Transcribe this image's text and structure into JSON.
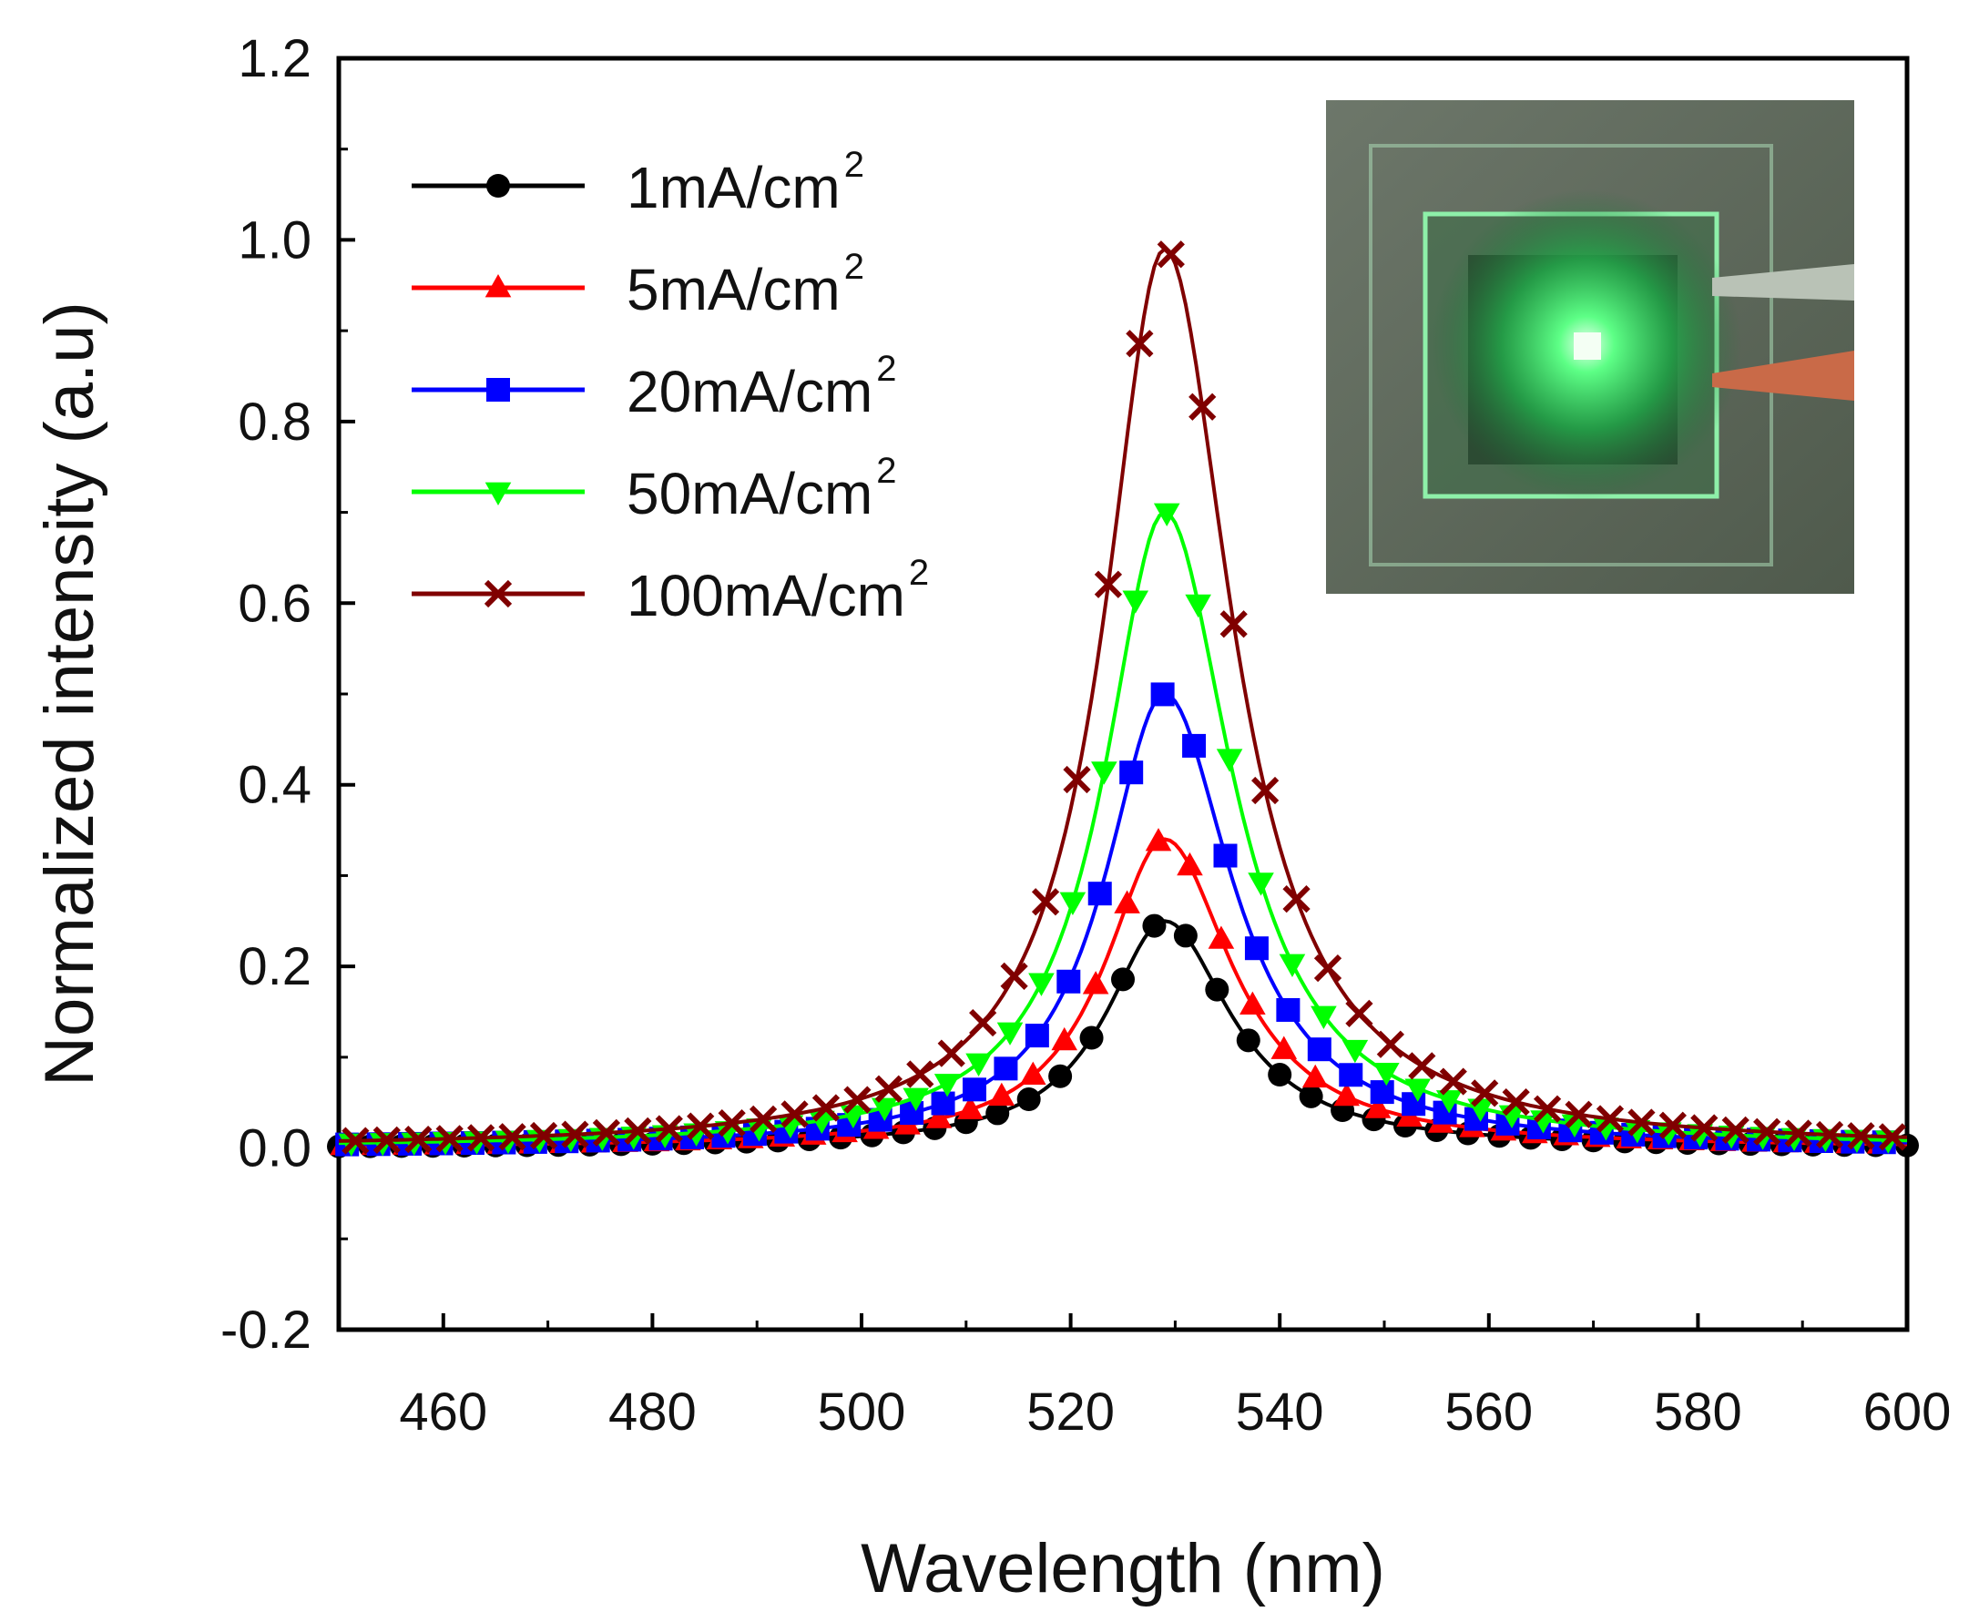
{
  "chart_data": {
    "type": "line",
    "title": "",
    "xlabel": "Wavelength (nm)",
    "ylabel": "Normalized intensity (a.u)",
    "xlim": [
      450,
      600
    ],
    "ylim": [
      -0.2,
      1.2
    ],
    "xticks": [
      460,
      480,
      500,
      520,
      540,
      560,
      580,
      600
    ],
    "yticks": [
      -0.2,
      0.0,
      0.2,
      0.4,
      0.6,
      0.8,
      1.0,
      1.2
    ],
    "xtick_labels": [
      "460",
      "480",
      "500",
      "520",
      "540",
      "560",
      "580",
      "600"
    ],
    "ytick_labels": [
      "-0.2",
      "0.0",
      "0.2",
      "0.4",
      "0.6",
      "0.8",
      "1.0",
      "1.2"
    ],
    "grid": false,
    "legend_position": "top-left",
    "peak_nm": 529,
    "series": [
      {
        "name": "1mA/cm2",
        "label": "1mA/cm",
        "sup": "2",
        "color": "#000000",
        "marker": "circle",
        "peak": 0.25,
        "width_left": 6.8,
        "width_right": 7.6
      },
      {
        "name": "5mA/cm2",
        "label": "5mA/cm",
        "sup": "2",
        "color": "#ff0000",
        "marker": "triangle-up",
        "peak": 0.34,
        "width_left": 7.0,
        "width_right": 7.8
      },
      {
        "name": "20mA/cm2",
        "label": "20mA/cm",
        "sup": "2",
        "color": "#0000ff",
        "marker": "square",
        "peak": 0.5,
        "width_left": 7.0,
        "width_right": 7.8
      },
      {
        "name": "50mA/cm2",
        "label": "50mA/cm",
        "sup": "2",
        "color": "#00ff00",
        "marker": "triangle-down",
        "peak": 0.7,
        "width_left": 7.0,
        "width_right": 7.8
      },
      {
        "name": "100mA/cm2",
        "label": "100mA/cm",
        "sup": "2",
        "color": "#800000",
        "marker": "x",
        "peak": 0.99,
        "width_left": 7.0,
        "width_right": 7.8
      }
    ],
    "x_sample_start": 450,
    "x_sample_end": 600,
    "x_sample_step": 3,
    "inset": {
      "description_icon": "device-photo-icon",
      "colors": {
        "background": "#5f6b5c",
        "glow": "#3cff6a",
        "frame": "#9be7b3"
      }
    }
  }
}
